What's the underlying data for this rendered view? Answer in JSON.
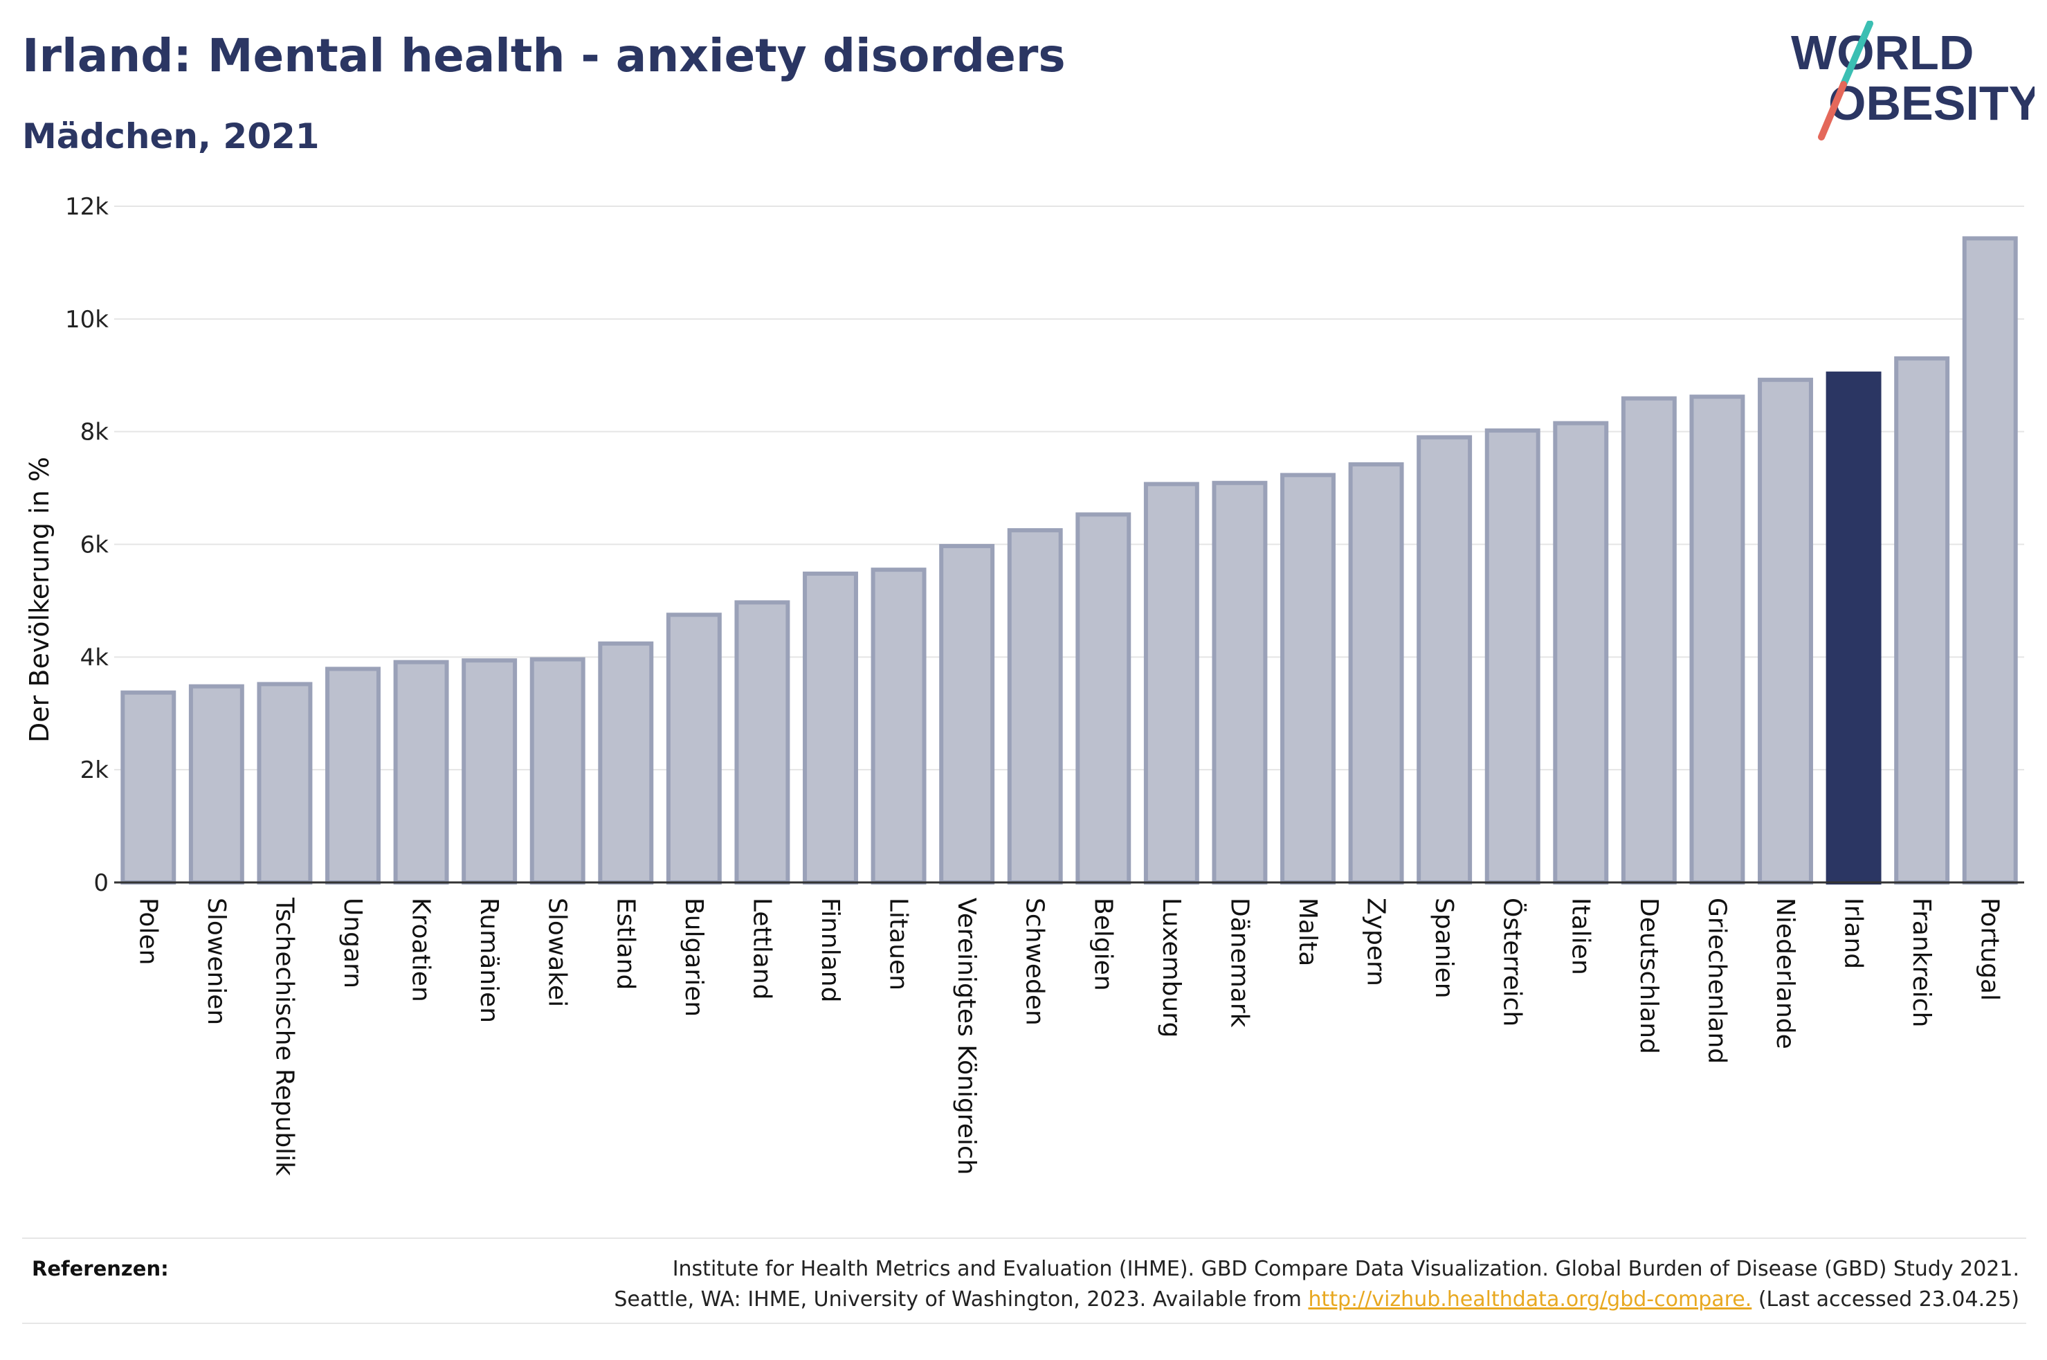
{
  "header": {
    "title": "Irland: Mental health - anxiety disorders",
    "subtitle": "Mädchen, 2021"
  },
  "logo": {
    "line1": "WORLD",
    "line2": "OBESITY",
    "accent_teal": "#3bbfb3",
    "accent_red": "#e4685a"
  },
  "colors": {
    "bar_default": "#bcc0ce",
    "bar_border": "#9aa1b8",
    "bar_highlight": "#2b3663",
    "text": "#2b3663"
  },
  "chart_data": {
    "type": "bar",
    "ylabel": "Der Bevölkerung in %",
    "ylim": [
      0,
      12000
    ],
    "yticks": [
      0,
      2000,
      4000,
      6000,
      8000,
      10000,
      12000
    ],
    "ytick_labels": [
      "0",
      "2k",
      "4k",
      "6k",
      "8k",
      "10k",
      "12k"
    ],
    "grid": true,
    "highlight": "Irland",
    "categories": [
      "Polen",
      "Slowenien",
      "Tschechische Republik",
      "Ungarn",
      "Kroatien",
      "Rumänien",
      "Slowakei",
      "Estland",
      "Bulgarien",
      "Lettland",
      "Finnland",
      "Litauen",
      "Vereinigtes Königreich",
      "Schweden",
      "Belgien",
      "Luxemburg",
      "Dänemark",
      "Malta",
      "Zypern",
      "Spanien",
      "Österreich",
      "Italien",
      "Deutschland",
      "Griechenland",
      "Niederlande",
      "Irland",
      "Frankreich",
      "Portugal"
    ],
    "values": [
      3370,
      3480,
      3520,
      3790,
      3910,
      3940,
      3960,
      4240,
      4750,
      4970,
      5480,
      5550,
      5970,
      6250,
      6530,
      7070,
      7090,
      7230,
      7420,
      7900,
      8020,
      8150,
      8590,
      8620,
      8920,
      9030,
      9300,
      11430
    ]
  },
  "references": {
    "label": "Referenzen:",
    "line1": "Institute for Health Metrics and Evaluation (IHME). GBD Compare Data Visualization. Global Burden of Disease (GBD) Study 2021.",
    "line2_prefix": "Seattle, WA: IHME, University of Washington, 2023. Available from ",
    "link": "http://vizhub.healthdata.org/gbd-compare.",
    "line2_suffix": " (Last accessed 23.04.25)"
  }
}
